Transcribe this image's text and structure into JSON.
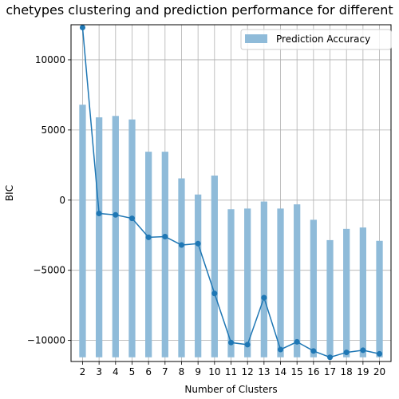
{
  "chart_data": {
    "type": "bar",
    "title": "chetypes clustering and prediction performance for different",
    "xlabel": "Number of Clusters",
    "ylabel": "BIC",
    "categories": [
      "2",
      "3",
      "4",
      "5",
      "6",
      "7",
      "8",
      "9",
      "10",
      "11",
      "12",
      "13",
      "14",
      "15",
      "16",
      "17",
      "18",
      "19",
      "20"
    ],
    "ylim": [
      -11500,
      12500
    ],
    "yticks": [
      -10000,
      -5000,
      0,
      5000,
      10000
    ],
    "ytick_labels": [
      "−10000",
      "−5000",
      "0",
      "5000",
      "10000"
    ],
    "grid": true,
    "legend_position": "top-right",
    "bar_baseline": -11200,
    "series": [
      {
        "name": "Prediction Accuracy",
        "type": "bar",
        "color": "#8fbbd9",
        "values": [
          6800,
          5900,
          6000,
          5750,
          3450,
          3450,
          1550,
          400,
          1750,
          -650,
          -600,
          -100,
          -600,
          -300,
          -1400,
          -2850,
          -2050,
          -1950,
          -2900
        ]
      },
      {
        "type": "line",
        "color": "#1f77b4",
        "values": [
          12300,
          -950,
          -1050,
          -1300,
          -2650,
          -2600,
          -3200,
          -3100,
          -6650,
          -10150,
          -10300,
          -6950,
          -10650,
          -10100,
          -10750,
          -11200,
          -10850,
          -10700,
          -10950
        ]
      }
    ]
  }
}
